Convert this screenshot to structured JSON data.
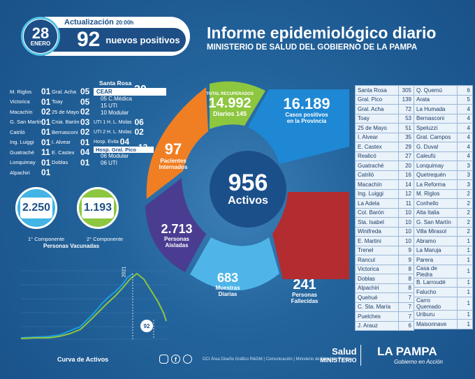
{
  "header": {
    "day": "28",
    "month": "ENERO",
    "update_label": "Actualización",
    "update_time": "20:00h",
    "new_positive_count": "92",
    "new_positive_label": "nuevos positivos",
    "title": "Informe epidemiológico diario",
    "subtitle": "MINISTERIO DE SALUD DEL GOBIERNO DE LA PAMPA"
  },
  "left_col1": [
    {
      "name": "M. Riglos",
      "value": "01"
    },
    {
      "name": "Victorica",
      "value": "01"
    },
    {
      "name": "Macachín",
      "value": "02"
    },
    {
      "name": "G. San Martín",
      "value": "01"
    },
    {
      "name": "Catriló",
      "value": "01"
    },
    {
      "name": "Ing. Luiggi",
      "value": "01"
    },
    {
      "name": "Guatraché",
      "value": "11"
    },
    {
      "name": "Lonquimay",
      "value": "01"
    },
    {
      "name": "Alpachiri",
      "value": "01"
    }
  ],
  "left_col2": [
    {
      "name": "Gral. Acha",
      "value": "05"
    },
    {
      "name": "Toay",
      "value": "05"
    },
    {
      "name": "25 de Mayo",
      "value": "02"
    },
    {
      "name": "Cnia. Barón",
      "value": "03"
    },
    {
      "name": "Bernasconi",
      "value": "02"
    },
    {
      "name": "I. Alvear",
      "value": "01"
    },
    {
      "name": "E. Castex",
      "value": "04"
    },
    {
      "name": "Doblas",
      "value": "01"
    }
  ],
  "santa_rosa": {
    "title": "Santa Rosa",
    "cear_label": "CEAR",
    "cear_value": "30",
    "lines": [
      "05 C.Médica",
      "15 UTI",
      "10 Modular"
    ],
    "uti1": "UTI 1 H. L. Molas",
    "uti1_value": "06",
    "uti2": "UTI 2 H. L. Molas",
    "uti2_value": "02",
    "evita": "Hosp. Evita",
    "evita_value": "04",
    "pico": "Hosp. Gral. Pico",
    "pico_value": "12",
    "pico_lines": [
      "06 Modular",
      "06 UTI"
    ]
  },
  "vaccines": {
    "first_value": "2.250",
    "second_value": "1.193",
    "first_label": "1° Componente",
    "second_label": "2° Componente",
    "caption": "Personas Vacunadas"
  },
  "center": {
    "recovered_label": "TOTAL RECUPERADOS",
    "recovered_value": "14.992",
    "daily_label": "Diarios",
    "daily_value": "145",
    "cases_value": "16.189",
    "cases_label1": "Casos positivos",
    "cases_label2": "en la Provincia",
    "hospital_value": "97",
    "hospital_label1": "Pacientes",
    "hospital_label2": "Internados",
    "active_value": "956",
    "active_label": "Activos",
    "isolated_value": "2.713",
    "isolated_label1": "Personas",
    "isolated_label2": "Aisladas",
    "samples_value": "683",
    "samples_label1": "Muestras",
    "samples_label2": "Diarias",
    "deaths_value": "241",
    "deaths_label1": "Personas",
    "deaths_label2": "Fallecidas"
  },
  "curve": {
    "title": "Curva de Activos",
    "peak_label": "2021",
    "current_value": "92"
  },
  "table_left": [
    [
      "Santa Rosa",
      "305"
    ],
    [
      "Gral. Pico",
      "139"
    ],
    [
      "Gral. Acha",
      "72"
    ],
    [
      "Toay",
      "53"
    ],
    [
      "25 de Mayo",
      "51"
    ],
    [
      "I. Alvear",
      "35"
    ],
    [
      "E. Castex",
      "29"
    ],
    [
      "Realicó",
      "27"
    ],
    [
      "Guatraché",
      "20"
    ],
    [
      "Catriló",
      "16"
    ],
    [
      "Macachín",
      "14"
    ],
    [
      "Ing. Luiggi",
      "12"
    ],
    [
      "La Adela",
      "11"
    ],
    [
      "Col. Barón",
      "10"
    ],
    [
      "Sta. Isabel",
      "10"
    ],
    [
      "Winifreda",
      "10"
    ],
    [
      "E. Martini",
      "10"
    ],
    [
      "Trenel",
      "9"
    ],
    [
      "Rancul",
      "9"
    ],
    [
      "Victorica",
      "8"
    ],
    [
      "Doblas",
      "8"
    ],
    [
      "Alpachiri",
      "8"
    ],
    [
      "Quehué",
      "7"
    ],
    [
      "C. Sta. María",
      "7"
    ],
    [
      "Puelches",
      "7"
    ],
    [
      "J. Arauz",
      "6"
    ]
  ],
  "table_right": [
    [
      "Q. Quemú",
      "6"
    ],
    [
      "Arata",
      "5"
    ],
    [
      "La Humada",
      "4"
    ],
    [
      "Bernasconi",
      "4"
    ],
    [
      "Speluzzi",
      "4"
    ],
    [
      "Gral. Campos",
      "4"
    ],
    [
      "G. Duval",
      "4"
    ],
    [
      "Caleufú",
      "4"
    ],
    [
      "Lonquimay",
      "3"
    ],
    [
      "Quetrequén",
      "3"
    ],
    [
      "La Reforma",
      "3"
    ],
    [
      "M. Riglos",
      "2"
    ],
    [
      "Conhello",
      "2"
    ],
    [
      "Alta Italia",
      "2"
    ],
    [
      "G. San Martín",
      "2"
    ],
    [
      "Villa Mirasol",
      "2"
    ],
    [
      "Abramo",
      "1"
    ],
    [
      "La Maruja",
      "1"
    ],
    [
      "Parera",
      "1"
    ],
    [
      "Casa de Piedra",
      "1"
    ],
    [
      "B. Larroudé",
      "1"
    ],
    [
      "Falucho",
      "1"
    ],
    [
      "Carro Quemado",
      "1"
    ],
    [
      "Uriburu",
      "1"
    ],
    [
      "Maisonnave",
      "1"
    ]
  ],
  "footer": {
    "credits": "DCI Área Diseño Gráfico R&GM | Comunicación | Ministerio de Salud La Pampa",
    "salud": "Salud",
    "ministerio": "MINISTERIO",
    "brand": "LA PAMPA",
    "slogan": "Gobierno en Acción"
  },
  "colors": {
    "bg": "#1f5c92",
    "green": "#8dc63f",
    "blue": "#1e88d4",
    "orange": "#f07f24",
    "purple": "#4a3d91",
    "lightblue": "#4fb5e8",
    "red": "#b32c2f"
  }
}
